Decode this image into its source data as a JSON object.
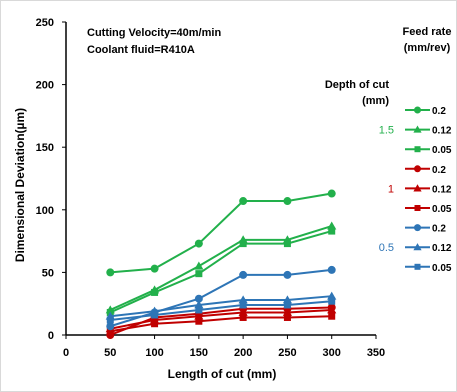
{
  "chart_data": {
    "type": "line",
    "annotations": [
      "Cutting Velocity=40m/min",
      "Coolant fluid=R410A"
    ],
    "xlabel": "Length of cut (mm)",
    "ylabel": "Dimensional Deviation(µm)",
    "xlim": [
      0,
      350
    ],
    "ylim": [
      0,
      250
    ],
    "x_ticks": [
      0,
      50,
      100,
      150,
      200,
      250,
      300,
      350
    ],
    "y_ticks": [
      0,
      50,
      100,
      150,
      200,
      250
    ],
    "x": [
      50,
      100,
      150,
      200,
      250,
      300
    ],
    "legend_header_feed": "Feed rate (mm/rev)",
    "legend_header_depth": "Depth of cut (mm)",
    "legend_placement": "right",
    "groups": [
      {
        "depth": "1.5",
        "color": "#22b04b",
        "series": [
          {
            "name": "0.2",
            "marker": "circle",
            "values": [
              50,
              53,
              73,
              107,
              107,
              113
            ]
          },
          {
            "name": "0.12",
            "marker": "triangle",
            "values": [
              20,
              36,
              55,
              76,
              76,
              87
            ]
          },
          {
            "name": "0.05",
            "marker": "square",
            "values": [
              18,
              34,
              49,
              73,
              73,
              83
            ]
          }
        ]
      },
      {
        "depth": "1",
        "color": "#c00000",
        "series": [
          {
            "name": "0.2",
            "marker": "circle",
            "values": [
              0,
              14,
              17,
              21,
              21,
              22
            ]
          },
          {
            "name": "0.12",
            "marker": "triangle",
            "values": [
              5,
              12,
              15,
              18,
              18,
              20
            ]
          },
          {
            "name": "0.05",
            "marker": "square",
            "values": [
              3,
              9,
              11,
              14,
              14,
              15
            ]
          }
        ]
      },
      {
        "depth": "0.5",
        "color": "#2e75b6",
        "series": [
          {
            "name": "0.2",
            "marker": "circle",
            "values": [
              7,
              18,
              29,
              48,
              48,
              52
            ]
          },
          {
            "name": "0.12",
            "marker": "triangle",
            "values": [
              15,
              19,
              24,
              28,
              28,
              31
            ]
          },
          {
            "name": "0.05",
            "marker": "square",
            "values": [
              12,
              16,
              20,
              24,
              24,
              27
            ]
          }
        ]
      }
    ]
  }
}
